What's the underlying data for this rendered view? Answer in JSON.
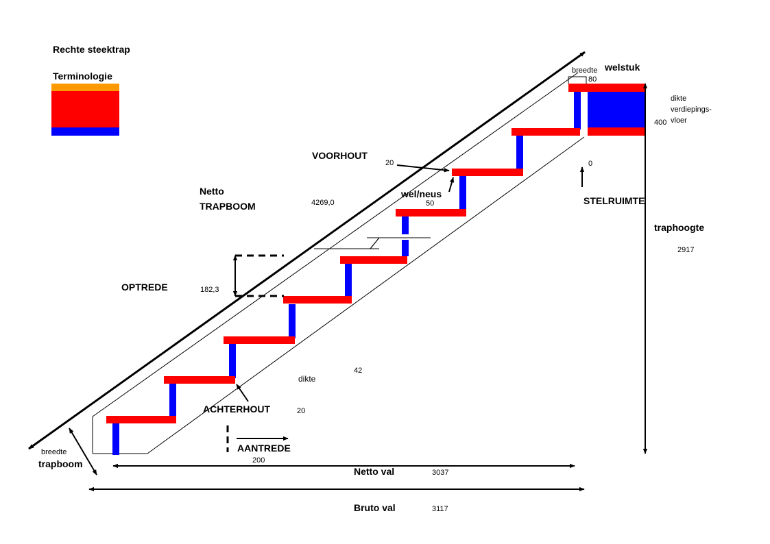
{
  "title": "Rechte steektrap",
  "legend_title": "Terminologie",
  "colors": {
    "tread": "#ff0000",
    "riser": "#0000ff",
    "nosing": "#ff9900",
    "line": "#000000",
    "background": "#ffffff"
  },
  "labels": {
    "voorhout": "VOORHOUT",
    "voorhout_value": "20",
    "netto": "Netto",
    "trapboom": "TRAPBOOM",
    "trapboom_value": "4269,0",
    "welneus": "wel/neus",
    "welneus_value": "50",
    "optrede": "OPTREDE",
    "optrede_value": "182,3",
    "dikte": "dikte",
    "dikte_value": "42",
    "achterhout": "ACHTERHOUT",
    "achterhout_value": "20",
    "aantrede": "AANTREDE",
    "aantrede_value": "200",
    "breedte_trapboom_1": "breedte",
    "breedte_trapboom_2": "trapboom",
    "netto_val": "Netto val",
    "netto_val_value": "3037",
    "bruto_val": "Bruto val",
    "bruto_val_value": "3117",
    "traphoogte": "traphoogte",
    "traphoogte_value": "2917",
    "stelruimte": "STELRUIMTE",
    "stelruimte_value": "0",
    "breedte_welstuk": "breedte",
    "welstuk": "welstuk",
    "welstuk_value": "80",
    "dikte_vloer_1": "dikte",
    "dikte_vloer_2": "verdiepings-",
    "dikte_vloer_3": "vloer",
    "dikte_vloer_value": "400"
  }
}
